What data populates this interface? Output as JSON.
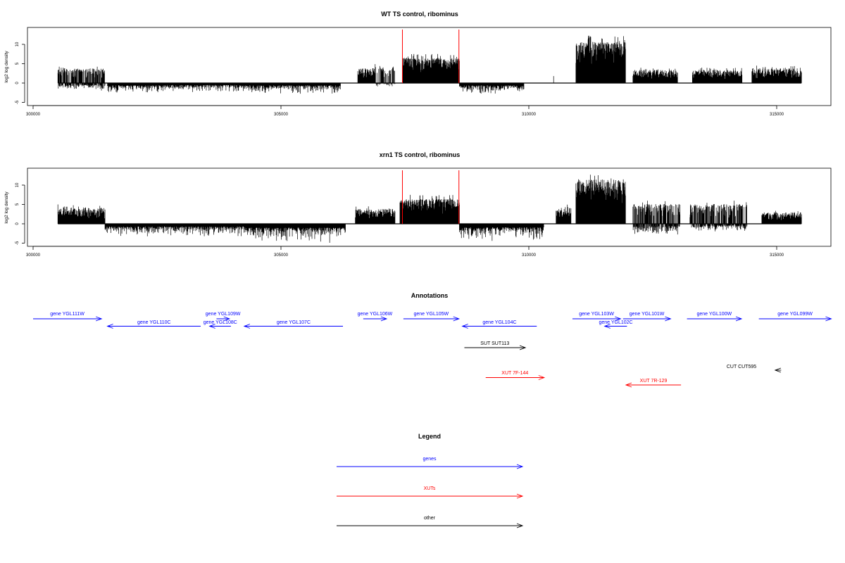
{
  "chart_data": [
    {
      "type": "bar",
      "title": "WT TS control, ribominus",
      "ylabel": "log2 log density",
      "xlim": [
        300000,
        316000
      ],
      "ylim": [
        -6,
        14
      ],
      "x_ticks": [
        300000,
        305000,
        310000,
        315000
      ],
      "y_ticks": [
        -5,
        0,
        5,
        10
      ],
      "bar_color": "#000000",
      "marker_color": "#ff0000",
      "markers": [
        307450,
        308590
      ],
      "regions": [
        {
          "start": 300500,
          "end": 301450,
          "min": -2,
          "max": 4.5
        },
        {
          "start": 301500,
          "end": 302500,
          "min": -3,
          "max": 0.5
        },
        {
          "start": 302500,
          "end": 304200,
          "min": -2.5,
          "max": 0
        },
        {
          "start": 304200,
          "end": 306200,
          "min": -3,
          "max": 0
        },
        {
          "start": 306550,
          "end": 306900,
          "min": 0,
          "max": 4.5
        },
        {
          "start": 306900,
          "end": 307300,
          "min": -1,
          "max": 5
        },
        {
          "start": 307450,
          "end": 308600,
          "min": 0,
          "max": 7.5
        },
        {
          "start": 308600,
          "end": 309900,
          "min": -3,
          "max": 1
        },
        {
          "start": 310500,
          "end": 310500,
          "min": 0,
          "max": 2.5
        },
        {
          "start": 310950,
          "end": 311950,
          "min": 0,
          "max": 12.5
        },
        {
          "start": 312100,
          "end": 313000,
          "min": 0,
          "max": 4
        },
        {
          "start": 313300,
          "end": 314300,
          "min": 0,
          "max": 4
        },
        {
          "start": 314500,
          "end": 315500,
          "min": 0,
          "max": 4.5
        }
      ]
    },
    {
      "type": "bar",
      "title": "xrn1 TS control, ribominus",
      "ylabel": "log2 log density",
      "xlim": [
        300000,
        316000
      ],
      "ylim": [
        -6,
        14
      ],
      "x_ticks": [
        300000,
        305000,
        310000,
        315000
      ],
      "y_ticks": [
        -5,
        0,
        5,
        10
      ],
      "bar_color": "#000000",
      "marker_color": "#ff0000",
      "markers": [
        307450,
        308590
      ],
      "regions": [
        {
          "start": 300500,
          "end": 301450,
          "min": 0,
          "max": 5
        },
        {
          "start": 301450,
          "end": 304300,
          "min": -3.5,
          "max": 0
        },
        {
          "start": 304300,
          "end": 306300,
          "min": -5,
          "max": 0.5
        },
        {
          "start": 306500,
          "end": 307300,
          "min": 0,
          "max": 4.5
        },
        {
          "start": 307400,
          "end": 308600,
          "min": 0,
          "max": 7.5
        },
        {
          "start": 308600,
          "end": 310300,
          "min": -4.5,
          "max": 1
        },
        {
          "start": 310550,
          "end": 310850,
          "min": 0,
          "max": 5
        },
        {
          "start": 310950,
          "end": 311950,
          "min": 0,
          "max": 13.5
        },
        {
          "start": 312100,
          "end": 313050,
          "min": -3,
          "max": 6
        },
        {
          "start": 313250,
          "end": 314400,
          "min": -2,
          "max": 6
        },
        {
          "start": 314700,
          "end": 315500,
          "min": 0,
          "max": 3.5
        }
      ]
    }
  ],
  "annotations": {
    "title": "Annotations",
    "colors": {
      "genes": "#0000ff",
      "XUTs": "#ff0000",
      "other": "#000000"
    },
    "features": [
      {
        "label": "gene YGL111W",
        "start": 300000,
        "end": 301380,
        "dir": "right",
        "category": "genes",
        "row": 0
      },
      {
        "label": "gene YGL110C",
        "start": 301500,
        "end": 303380,
        "dir": "left",
        "category": "genes",
        "row": 1
      },
      {
        "label": "gene YGL109W",
        "start": 303700,
        "end": 303960,
        "dir": "right",
        "category": "genes",
        "row": 0
      },
      {
        "label": "gene YGL108C",
        "start": 303560,
        "end": 303990,
        "dir": "left",
        "category": "genes",
        "row": 1
      },
      {
        "label": "gene YGL107C",
        "start": 304260,
        "end": 306250,
        "dir": "left",
        "category": "genes",
        "row": 1
      },
      {
        "label": "gene YGL106W",
        "start": 306660,
        "end": 307130,
        "dir": "right",
        "category": "genes",
        "row": 0
      },
      {
        "label": "gene YGL105W",
        "start": 307470,
        "end": 308590,
        "dir": "right",
        "category": "genes",
        "row": 0
      },
      {
        "label": "gene YGL104C",
        "start": 308660,
        "end": 310160,
        "dir": "left",
        "category": "genes",
        "row": 1
      },
      {
        "label": "gene YGL103W",
        "start": 310880,
        "end": 311850,
        "dir": "right",
        "category": "genes",
        "row": 0
      },
      {
        "label": "gene YGL102C",
        "start": 311530,
        "end": 311980,
        "dir": "left",
        "category": "genes",
        "row": 1
      },
      {
        "label": "gene YGL101W",
        "start": 311900,
        "end": 312860,
        "dir": "right",
        "category": "genes",
        "row": 0
      },
      {
        "label": "gene YGL100W",
        "start": 313190,
        "end": 314290,
        "dir": "right",
        "category": "genes",
        "row": 0
      },
      {
        "label": "gene YGL099W",
        "start": 314640,
        "end": 316100,
        "dir": "right",
        "category": "genes",
        "row": 0
      },
      {
        "label": "SUT SUT113",
        "start": 308700,
        "end": 309930,
        "dir": "right",
        "category": "other",
        "row": 2
      },
      {
        "label": "XUT 7F-144",
        "start": 309130,
        "end": 310310,
        "dir": "right",
        "category": "XUTs",
        "row": 3
      },
      {
        "label": "XUT 7R-129",
        "start": 311960,
        "end": 313070,
        "dir": "left",
        "category": "XUTs",
        "row": 4
      },
      {
        "label": "CUT CUT595",
        "start": 314970,
        "end": 315090,
        "dir": "left",
        "category": "other",
        "row": 5
      }
    ]
  },
  "legend": {
    "title": "Legend",
    "items": [
      {
        "label": "genes",
        "color": "#0000ff"
      },
      {
        "label": "XUTs",
        "color": "#ff0000"
      },
      {
        "label": "other",
        "color": "#000000"
      }
    ]
  }
}
